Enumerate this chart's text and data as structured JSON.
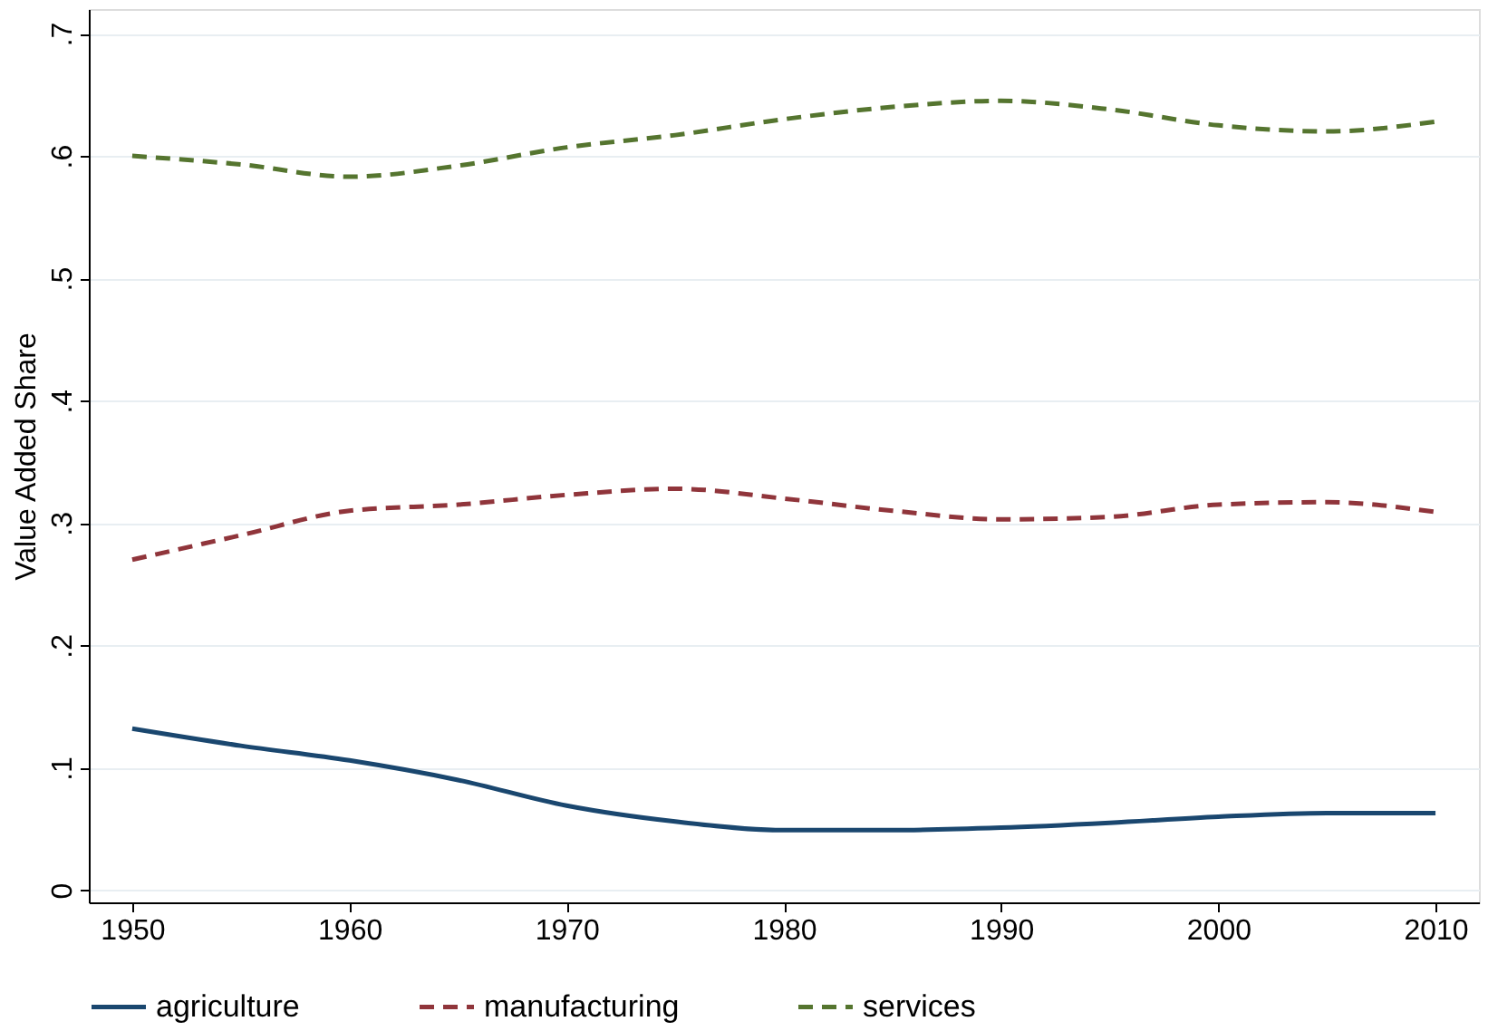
{
  "chart_data": {
    "type": "line",
    "ylabel": "Value Added Share",
    "x": [
      1950,
      1955,
      1960,
      1965,
      1970,
      1975,
      1980,
      1985,
      1990,
      1995,
      2000,
      2005,
      2010
    ],
    "series": [
      {
        "name": "agriculture",
        "color": "#1a476f",
        "line_style": "solid",
        "values": [
          0.132,
          0.118,
          0.106,
          0.09,
          0.069,
          0.056,
          0.049,
          0.049,
          0.051,
          0.055,
          0.06,
          0.063,
          0.063
        ]
      },
      {
        "name": "manufacturing",
        "color": "#90353b",
        "line_style": "dashed",
        "values": [
          0.27,
          0.29,
          0.31,
          0.315,
          0.323,
          0.328,
          0.32,
          0.31,
          0.303,
          0.305,
          0.315,
          0.317,
          0.309
        ]
      },
      {
        "name": "services",
        "color": "#55752f",
        "line_style": "dashed",
        "values": [
          0.6,
          0.593,
          0.583,
          0.592,
          0.607,
          0.617,
          0.63,
          0.64,
          0.645,
          0.638,
          0.625,
          0.62,
          0.628
        ]
      }
    ],
    "xlim": [
      1948,
      2012
    ],
    "xticks": [
      1950,
      1960,
      1970,
      1980,
      1990,
      2000,
      2010
    ],
    "ylim": [
      -0.01,
      0.72
    ],
    "yticks": [
      {
        "value": 0,
        "label": "0"
      },
      {
        "value": 0.1,
        "label": ".1"
      },
      {
        "value": 0.2,
        "label": ".2"
      },
      {
        "value": 0.3,
        "label": ".3"
      },
      {
        "value": 0.4,
        "label": ".4"
      },
      {
        "value": 0.5,
        "label": ".5"
      },
      {
        "value": 0.6,
        "label": ".6"
      },
      {
        "value": 0.7,
        "label": ".7"
      }
    ],
    "grid": "y",
    "legend": "bottom"
  }
}
